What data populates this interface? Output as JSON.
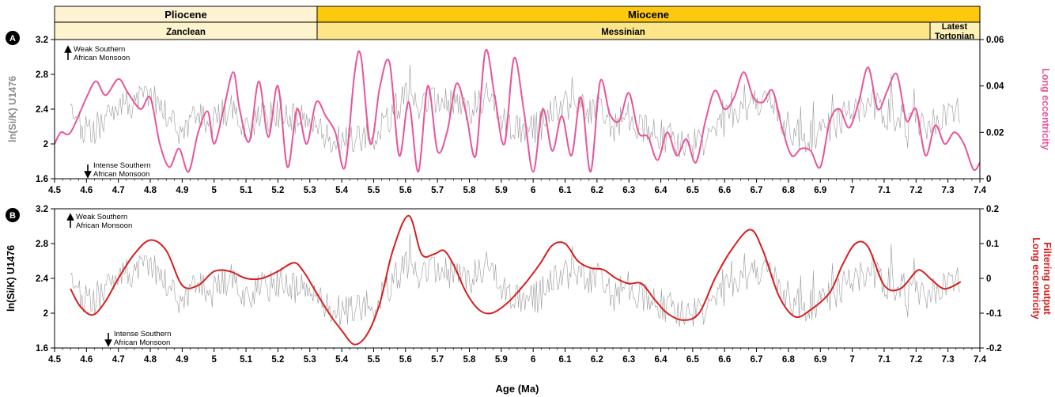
{
  "colors": {
    "pliocene_fill": "#fdf3d3",
    "miocene_fill": "#fdc90f",
    "zanclean_fill": "#fdf4cd",
    "messinian_fill": "#fde68a",
    "tortonian_fill": "#fdf0b8",
    "data_gray": "#999999",
    "ylabel_gray": "#8c8c8c",
    "ecc_pink": "#e8559a",
    "filter_red": "#d81e1e"
  },
  "stratigraphy": {
    "epochs": [
      {
        "label": "Pliocene",
        "from": 4.5,
        "to": 5.333
      },
      {
        "label": "Miocene",
        "from": 5.333,
        "to": 7.4
      }
    ],
    "stages": [
      {
        "label": "Zanclean",
        "from": 4.5,
        "to": 5.333
      },
      {
        "label": "Messinian",
        "from": 5.333,
        "to": 7.246
      },
      {
        "label_line1": "Latest",
        "label_line2": "Tortonian",
        "from": 7.246,
        "to": 7.4
      }
    ]
  },
  "panels": {
    "a": {
      "letter": "A",
      "ylabel_left": "ln(Si/K) U1476",
      "ylabel_right": "Long eccentricity",
      "annotation_top_line1": "Weak Southern",
      "annotation_top_line2": "African Monsoon",
      "annotation_bottom_line1": "Intense Southern",
      "annotation_bottom_line2": "African Monsoon"
    },
    "b": {
      "letter": "B",
      "ylabel_left": "ln(Si/K) U1476",
      "ylabel_right_line1": "Long eccentricity",
      "ylabel_right_line2": "Filtering output",
      "annotation_top_line1": "Weak Southern",
      "annotation_top_line2": "African Monsoon",
      "annotation_bottom_line1": "Intense Southern",
      "annotation_bottom_line2": "African Monsoon"
    }
  },
  "xlabel": "Age (Ma)",
  "chart_data": [
    {
      "type": "line",
      "panel": "A",
      "xlabel": "",
      "xlim": [
        4.5,
        7.4
      ],
      "x_ticks": [
        "4.5",
        "4.6",
        "4.7",
        "4.8",
        "4.9",
        "5",
        "5.1",
        "5.2",
        "5.3",
        "5.4",
        "5.5",
        "5.6",
        "5.7",
        "5.8",
        "5.9",
        "6",
        "6.1",
        "6.2",
        "6.3",
        "6.4",
        "6.5",
        "6.6",
        "6.7",
        "6.8",
        "6.9",
        "7",
        "7.1",
        "7.2",
        "7.3",
        "7.4"
      ],
      "ylim_left": [
        1.6,
        3.2
      ],
      "y_ticks_left": [
        "1.6",
        "2",
        "2.4",
        "2.8",
        "3.2"
      ],
      "ylim_right": [
        0,
        0.06
      ],
      "y_ticks_right": [
        "0",
        "0.02",
        "0.04",
        "0.06"
      ],
      "series": [
        {
          "name": "ln(Si/K) U1476",
          "axis": "left",
          "x": [
            4.55,
            4.6,
            4.65,
            4.7,
            4.75,
            4.8,
            4.85,
            4.9,
            4.95,
            5.0,
            5.05,
            5.1,
            5.15,
            5.2,
            5.25,
            5.3,
            5.35,
            5.4,
            5.45,
            5.5,
            5.55,
            5.6,
            5.65,
            5.7,
            5.75,
            5.8,
            5.85,
            5.9,
            5.95,
            6.0,
            6.05,
            6.1,
            6.15,
            6.2,
            6.25,
            6.3,
            6.35,
            6.4,
            6.45,
            6.5,
            6.55,
            6.6,
            6.65,
            6.7,
            6.75,
            6.8,
            6.85,
            6.9,
            6.95,
            7.0,
            7.05,
            7.1,
            7.15,
            7.2,
            7.25,
            7.3,
            7.34
          ],
          "y": [
            2.3,
            2.1,
            2.25,
            2.5,
            2.45,
            2.6,
            2.35,
            2.15,
            2.3,
            2.25,
            2.4,
            2.2,
            2.3,
            2.35,
            2.3,
            2.25,
            2.1,
            2.0,
            2.1,
            2.05,
            2.3,
            2.55,
            2.4,
            2.5,
            2.45,
            2.4,
            2.55,
            2.3,
            2.2,
            2.15,
            2.3,
            2.45,
            2.35,
            2.4,
            2.2,
            2.3,
            2.2,
            2.1,
            2.05,
            2.0,
            2.05,
            2.25,
            2.35,
            2.45,
            2.4,
            2.2,
            2.05,
            2.15,
            2.25,
            2.4,
            2.5,
            2.35,
            2.3,
            2.2,
            2.25,
            2.3,
            2.4
          ]
        },
        {
          "name": "Long eccentricity",
          "axis": "right",
          "x": [
            4.5,
            4.52,
            4.55,
            4.6,
            4.63,
            4.66,
            4.7,
            4.73,
            4.77,
            4.8,
            4.83,
            4.86,
            4.89,
            4.92,
            4.95,
            4.98,
            5.0,
            5.03,
            5.06,
            5.08,
            5.11,
            5.14,
            5.17,
            5.2,
            5.23,
            5.26,
            5.29,
            5.32,
            5.35,
            5.38,
            5.41,
            5.44,
            5.46,
            5.49,
            5.52,
            5.55,
            5.58,
            5.61,
            5.64,
            5.67,
            5.7,
            5.73,
            5.76,
            5.79,
            5.82,
            5.85,
            5.88,
            5.91,
            5.94,
            5.97,
            6.0,
            6.03,
            6.06,
            6.09,
            6.12,
            6.15,
            6.18,
            6.21,
            6.24,
            6.27,
            6.3,
            6.33,
            6.36,
            6.39,
            6.42,
            6.45,
            6.48,
            6.51,
            6.54,
            6.57,
            6.6,
            6.63,
            6.66,
            6.69,
            6.72,
            6.75,
            6.78,
            6.81,
            6.84,
            6.87,
            6.9,
            6.93,
            6.96,
            6.99,
            7.02,
            7.05,
            7.08,
            7.11,
            7.14,
            7.17,
            7.2,
            7.23,
            7.26,
            7.29,
            7.32,
            7.35,
            7.38,
            7.4
          ],
          "y": [
            0.015,
            0.02,
            0.02,
            0.035,
            0.042,
            0.036,
            0.043,
            0.037,
            0.03,
            0.035,
            0.015,
            0.005,
            0.013,
            0.003,
            0.02,
            0.029,
            0.015,
            0.03,
            0.046,
            0.03,
            0.016,
            0.042,
            0.018,
            0.04,
            0.005,
            0.03,
            0.015,
            0.033,
            0.027,
            0.02,
            0.005,
            0.045,
            0.053,
            0.015,
            0.04,
            0.05,
            0.01,
            0.033,
            0.003,
            0.04,
            0.012,
            0.02,
            0.041,
            0.028,
            0.01,
            0.055,
            0.035,
            0.015,
            0.052,
            0.03,
            0.003,
            0.03,
            0.012,
            0.027,
            0.01,
            0.035,
            0.003,
            0.042,
            0.028,
            0.025,
            0.037,
            0.02,
            0.018,
            0.008,
            0.02,
            0.01,
            0.017,
            0.007,
            0.025,
            0.038,
            0.03,
            0.035,
            0.046,
            0.035,
            0.033,
            0.038,
            0.022,
            0.01,
            0.013,
            0.012,
            0.005,
            0.025,
            0.03,
            0.022,
            0.033,
            0.048,
            0.03,
            0.038,
            0.045,
            0.025,
            0.03,
            0.01,
            0.023,
            0.015,
            0.02,
            0.015,
            0.004,
            0.007
          ]
        }
      ]
    },
    {
      "type": "line",
      "panel": "B",
      "xlabel": "Age (Ma)",
      "xlim": [
        4.5,
        7.4
      ],
      "x_ticks": [
        "4.5",
        "4.6",
        "4.7",
        "4.8",
        "4.9",
        "5",
        "5.1",
        "5.2",
        "5.3",
        "5.4",
        "5.5",
        "5.6",
        "5.7",
        "5.8",
        "5.9",
        "6",
        "6.1",
        "6.2",
        "6.3",
        "6.4",
        "6.5",
        "6.6",
        "6.7",
        "6.8",
        "6.9",
        "7",
        "7.1",
        "7.2",
        "7.3",
        "7.4"
      ],
      "ylim_left": [
        1.6,
        3.2
      ],
      "y_ticks_left": [
        "1.6",
        "2",
        "2.4",
        "2.8",
        "3.2"
      ],
      "ylim_right": [
        -0.2,
        0.2
      ],
      "y_ticks_right": [
        "-0.2",
        "-0.1",
        "0",
        "0.1",
        "0.2"
      ],
      "series": [
        {
          "name": "ln(Si/K) U1476",
          "axis": "left",
          "x": [
            4.55,
            4.6,
            4.65,
            4.7,
            4.75,
            4.8,
            4.85,
            4.9,
            4.95,
            5.0,
            5.05,
            5.1,
            5.15,
            5.2,
            5.25,
            5.3,
            5.35,
            5.4,
            5.45,
            5.5,
            5.55,
            5.6,
            5.65,
            5.7,
            5.75,
            5.8,
            5.85,
            5.9,
            5.95,
            6.0,
            6.05,
            6.1,
            6.15,
            6.2,
            6.25,
            6.3,
            6.35,
            6.4,
            6.45,
            6.5,
            6.55,
            6.6,
            6.65,
            6.7,
            6.75,
            6.8,
            6.85,
            6.9,
            6.95,
            7.0,
            7.05,
            7.1,
            7.15,
            7.2,
            7.25,
            7.3,
            7.34
          ],
          "y": [
            2.3,
            2.1,
            2.25,
            2.5,
            2.45,
            2.6,
            2.35,
            2.15,
            2.3,
            2.25,
            2.4,
            2.2,
            2.3,
            2.35,
            2.3,
            2.25,
            2.1,
            2.0,
            2.1,
            2.05,
            2.3,
            2.55,
            2.4,
            2.5,
            2.45,
            2.4,
            2.55,
            2.3,
            2.2,
            2.15,
            2.3,
            2.45,
            2.35,
            2.4,
            2.2,
            2.3,
            2.2,
            2.1,
            2.05,
            2.0,
            2.05,
            2.25,
            2.35,
            2.45,
            2.4,
            2.2,
            2.05,
            2.15,
            2.25,
            2.4,
            2.5,
            2.35,
            2.3,
            2.2,
            2.25,
            2.3,
            2.4
          ]
        },
        {
          "name": "Long eccentricity Filtering output",
          "axis": "right",
          "x": [
            4.55,
            4.58,
            4.62,
            4.66,
            4.7,
            4.75,
            4.8,
            4.85,
            4.9,
            4.95,
            5.0,
            5.05,
            5.1,
            5.15,
            5.2,
            5.25,
            5.28,
            5.32,
            5.36,
            5.4,
            5.44,
            5.48,
            5.52,
            5.56,
            5.61,
            5.65,
            5.69,
            5.72,
            5.75,
            5.79,
            5.83,
            5.87,
            5.92,
            5.97,
            6.02,
            6.06,
            6.1,
            6.14,
            6.18,
            6.22,
            6.26,
            6.3,
            6.34,
            6.38,
            6.42,
            6.47,
            6.52,
            6.57,
            6.62,
            6.68,
            6.72,
            6.77,
            6.82,
            6.87,
            6.93,
            6.97,
            7.01,
            7.05,
            7.1,
            7.15,
            7.2,
            7.22,
            7.25,
            7.29,
            7.34
          ],
          "y": [
            -0.03,
            -0.08,
            -0.105,
            -0.065,
            0.0,
            0.07,
            0.11,
            0.08,
            -0.02,
            -0.02,
            0.02,
            0.02,
            0.0,
            0.0,
            0.02,
            0.045,
            0.02,
            -0.04,
            -0.1,
            -0.15,
            -0.19,
            -0.16,
            -0.07,
            0.08,
            0.18,
            0.07,
            0.07,
            0.08,
            0.04,
            -0.04,
            -0.09,
            -0.1,
            -0.07,
            -0.02,
            0.04,
            0.095,
            0.1,
            0.05,
            0.03,
            0.025,
            0.0,
            -0.015,
            -0.015,
            -0.06,
            -0.1,
            -0.12,
            -0.1,
            0.0,
            0.08,
            0.14,
            0.08,
            -0.05,
            -0.11,
            -0.09,
            -0.04,
            0.04,
            0.1,
            0.09,
            -0.02,
            -0.03,
            0.02,
            0.02,
            -0.005,
            -0.03,
            -0.01
          ]
        }
      ]
    }
  ]
}
